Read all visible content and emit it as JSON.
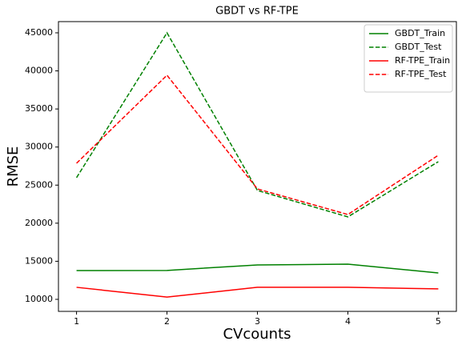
{
  "chart_data": {
    "type": "line",
    "title": "GBDT vs RF-TPE",
    "x_label": "CVcounts",
    "y_label": "RMSE",
    "x": [
      1,
      2,
      3,
      4,
      5
    ],
    "series": [
      {
        "name": "GBDT_Train",
        "color": "#008000",
        "linestyle": "solid",
        "values": [
          13780,
          13800,
          14520,
          14620,
          13470
        ]
      },
      {
        "name": "GBDT_Test",
        "color": "#008000",
        "linestyle": "dashed",
        "values": [
          25980,
          45000,
          24300,
          20830,
          28080
        ]
      },
      {
        "name": "RF-TPE_Train",
        "color": "#ff0000",
        "linestyle": "solid",
        "values": [
          11580,
          10300,
          11580,
          11580,
          11370
        ]
      },
      {
        "name": "RF-TPE_Test",
        "color": "#ff0000",
        "linestyle": "dashed",
        "values": [
          27870,
          39430,
          24500,
          21140,
          28920
        ]
      }
    ],
    "xlim": [
      0.8,
      5.2
    ],
    "xticks": [
      1,
      2,
      3,
      4,
      5
    ],
    "ylim": [
      8420,
      46470
    ],
    "yticks": [
      10000,
      15000,
      20000,
      25000,
      30000,
      35000,
      40000,
      45000
    ],
    "legend": "upper right"
  }
}
